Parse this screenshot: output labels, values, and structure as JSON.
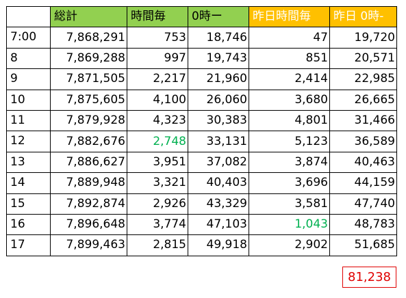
{
  "colors": {
    "green_header": "#92d050",
    "orange_header": "#ffc000",
    "highlight_green": "#00b050",
    "total_red": "#e00000"
  },
  "headers": [
    "",
    "総計",
    "時間毎",
    "0時ー",
    "昨日時間毎",
    "昨日 0時-"
  ],
  "rows": [
    {
      "time": "7:00",
      "total": "7,868,291",
      "hourly": "753",
      "since0": "18,746",
      "y_hourly": "47",
      "y_since0": "19,720"
    },
    {
      "time": "8",
      "total": "7,869,288",
      "hourly": "997",
      "since0": "19,743",
      "y_hourly": "851",
      "y_since0": "20,571"
    },
    {
      "time": "9",
      "total": "7,871,505",
      "hourly": "2,217",
      "since0": "21,960",
      "y_hourly": "2,414",
      "y_since0": "22,985"
    },
    {
      "time": "10",
      "total": "7,875,605",
      "hourly": "4,100",
      "since0": "26,060",
      "y_hourly": "3,680",
      "y_since0": "26,665"
    },
    {
      "time": "11",
      "total": "7,879,928",
      "hourly": "4,323",
      "since0": "30,383",
      "y_hourly": "4,801",
      "y_since0": "31,466"
    },
    {
      "time": "12",
      "total": "7,882,676",
      "hourly": "2,748",
      "since0": "33,131",
      "y_hourly": "5,123",
      "y_since0": "36,589"
    },
    {
      "time": "13",
      "total": "7,886,627",
      "hourly": "3,951",
      "since0": "37,082",
      "y_hourly": "3,874",
      "y_since0": "40,463"
    },
    {
      "time": "14",
      "total": "7,889,948",
      "hourly": "3,321",
      "since0": "40,403",
      "y_hourly": "3,696",
      "y_since0": "44,159"
    },
    {
      "time": "15",
      "total": "7,892,874",
      "hourly": "2,926",
      "since0": "43,329",
      "y_hourly": "3,581",
      "y_since0": "47,740"
    },
    {
      "time": "16",
      "total": "7,896,648",
      "hourly": "3,774",
      "since0": "47,103",
      "y_hourly": "1,043",
      "y_since0": "48,783"
    },
    {
      "time": "17",
      "total": "7,899,463",
      "hourly": "2,815",
      "since0": "49,918",
      "y_hourly": "2,902",
      "y_since0": "51,685"
    }
  ],
  "footer": {
    "red_total": "81,238"
  }
}
